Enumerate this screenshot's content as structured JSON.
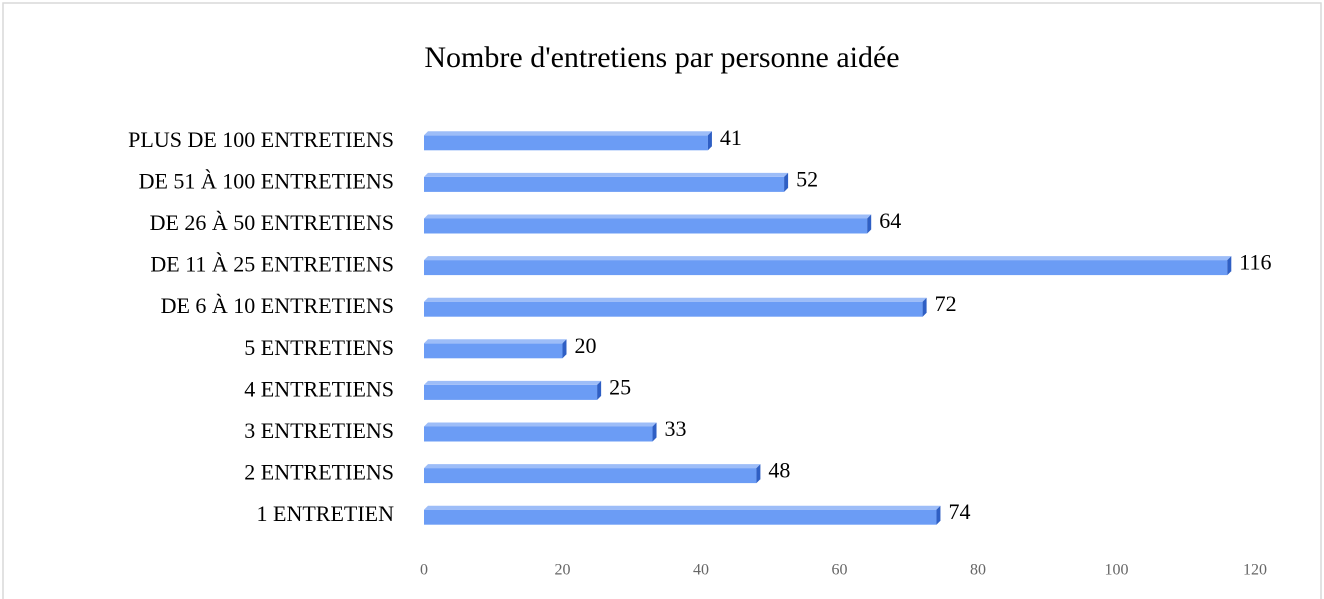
{
  "chart_data": {
    "type": "bar",
    "orientation": "horizontal",
    "title": "Nombre d'entretiens par personne aidée",
    "categories": [
      "PLUS DE 100 ENTRETIENS",
      "DE 51 À 100 ENTRETIENS",
      "DE 26 À 50 ENTRETIENS",
      "DE 11 À 25 ENTRETIENS",
      "DE 6 À 10 ENTRETIENS",
      "5 ENTRETIENS",
      "4 ENTRETIENS",
      "3 ENTRETIENS",
      "2 ENTRETIENS",
      "1 ENTRETIEN"
    ],
    "values": [
      41,
      52,
      64,
      116,
      72,
      20,
      25,
      33,
      48,
      74
    ],
    "color": "#6b9cf5",
    "xlim": [
      0,
      120
    ],
    "xticks": [
      0,
      20,
      40,
      60,
      80,
      100,
      120
    ],
    "grid": false
  }
}
